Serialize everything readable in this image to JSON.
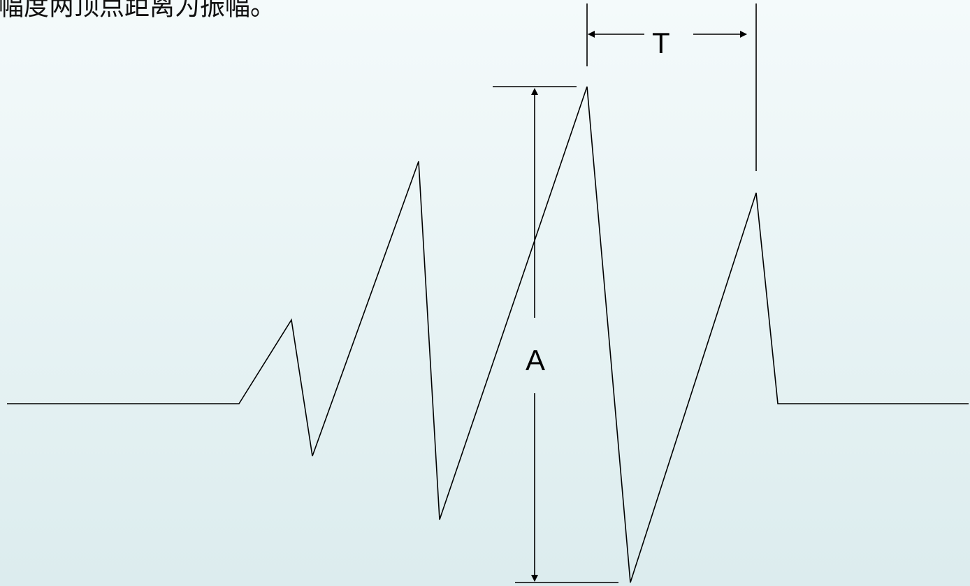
{
  "caption": "幅度两顶点距离为振幅。",
  "labels": {
    "period": "T",
    "amplitude": "A"
  },
  "colors": {
    "background_top": "#f4fafb",
    "background_bottom": "#dcecee",
    "line": "#000000"
  }
}
